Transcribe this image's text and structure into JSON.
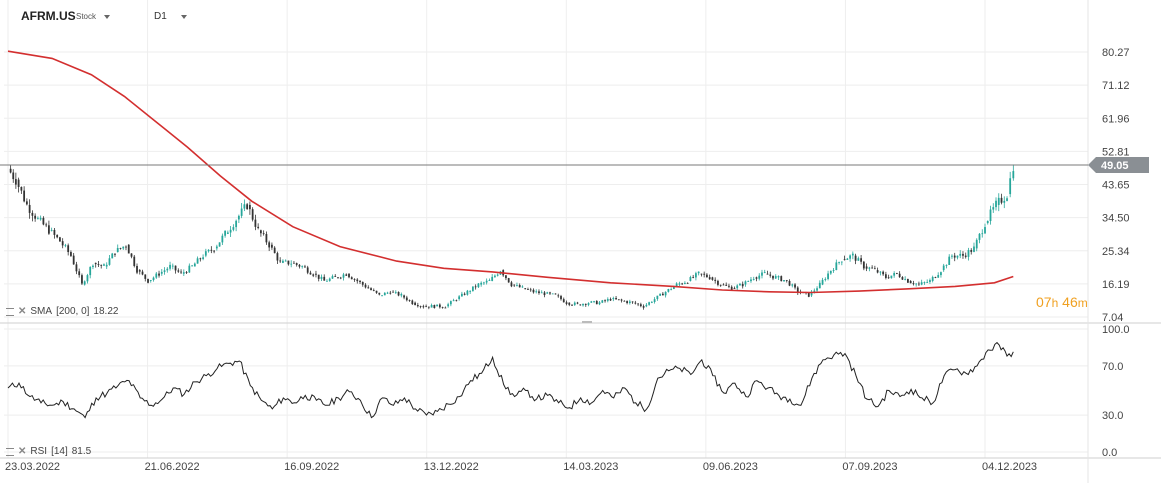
{
  "header": {
    "symbol": "AFRM.US",
    "instrument_type": "Stock",
    "timeframe": "D1"
  },
  "colors": {
    "up": "#26a69a",
    "down": "#333333",
    "sma": "#d32f2f",
    "rsi": "#222222",
    "grid": "#eeeeee",
    "price_tag": "#8a8f94"
  },
  "indicators": {
    "sma": {
      "label": "SMA",
      "params": "[200,  0]",
      "value": "18.22"
    },
    "rsi": {
      "label": "RSI",
      "params": "[14]",
      "value": "81.5"
    }
  },
  "countdown": {
    "hours": "07",
    "h_unit": "h",
    "minutes": "46",
    "m_unit": "m"
  },
  "chart_data": [
    {
      "type": "candlestick",
      "title": "",
      "x_ticks": [
        "23.03.2022",
        "21.06.2022",
        "16.09.2022",
        "13.12.2022",
        "14.03.2023",
        "09.06.2023",
        "07.09.2023",
        "04.12.2023"
      ],
      "y_ticks": [
        "80.27",
        "71.12",
        "61.96",
        "52.81",
        "43.65",
        "34.50",
        "25.34",
        "16.19",
        "7.04"
      ],
      "ylim": [
        7.04,
        80.27
      ],
      "current_price": "49.05",
      "close_series": [
        [
          "2022-03-23",
          48
        ],
        [
          "2022-03-28",
          45
        ],
        [
          "2022-04-04",
          38
        ],
        [
          "2022-04-11",
          34
        ],
        [
          "2022-04-18",
          31
        ],
        [
          "2022-04-25",
          28
        ],
        [
          "2022-05-02",
          24
        ],
        [
          "2022-05-09",
          16
        ],
        [
          "2022-05-16",
          22
        ],
        [
          "2022-05-23",
          21
        ],
        [
          "2022-05-30",
          25
        ],
        [
          "2022-06-06",
          27
        ],
        [
          "2022-06-13",
          20
        ],
        [
          "2022-06-20",
          17
        ],
        [
          "2022-06-27",
          19
        ],
        [
          "2022-07-04",
          21
        ],
        [
          "2022-07-11",
          19
        ],
        [
          "2022-07-18",
          21
        ],
        [
          "2022-07-25",
          24
        ],
        [
          "2022-08-01",
          26
        ],
        [
          "2022-08-08",
          30
        ],
        [
          "2022-08-15",
          34
        ],
        [
          "2022-08-22",
          38
        ],
        [
          "2022-08-29",
          31
        ],
        [
          "2022-09-05",
          27
        ],
        [
          "2022-09-12",
          22
        ],
        [
          "2022-09-19",
          22
        ],
        [
          "2022-09-26",
          21
        ],
        [
          "2022-10-03",
          19
        ],
        [
          "2022-10-10",
          17
        ],
        [
          "2022-10-17",
          18
        ],
        [
          "2022-10-24",
          19
        ],
        [
          "2022-10-31",
          17
        ],
        [
          "2022-11-07",
          15
        ],
        [
          "2022-11-14",
          13
        ],
        [
          "2022-11-21",
          14
        ],
        [
          "2022-11-28",
          13
        ],
        [
          "2022-12-05",
          11
        ],
        [
          "2022-12-12",
          10
        ],
        [
          "2022-12-19",
          10
        ],
        [
          "2022-12-26",
          10
        ],
        [
          "2023-01-02",
          12
        ],
        [
          "2023-01-09",
          14
        ],
        [
          "2023-01-16",
          16
        ],
        [
          "2023-01-23",
          17
        ],
        [
          "2023-01-30",
          20
        ],
        [
          "2023-02-06",
          16
        ],
        [
          "2023-02-13",
          15
        ],
        [
          "2023-02-20",
          14
        ],
        [
          "2023-02-27",
          13.5
        ],
        [
          "2023-03-06",
          13
        ],
        [
          "2023-03-13",
          11
        ],
        [
          "2023-03-20",
          10.5
        ],
        [
          "2023-03-27",
          11
        ],
        [
          "2023-04-03",
          11
        ],
        [
          "2023-04-10",
          12
        ],
        [
          "2023-04-17",
          11.5
        ],
        [
          "2023-04-24",
          11
        ],
        [
          "2023-05-01",
          10
        ],
        [
          "2023-05-08",
          12
        ],
        [
          "2023-05-15",
          14
        ],
        [
          "2023-05-22",
          16
        ],
        [
          "2023-05-29",
          17
        ],
        [
          "2023-06-05",
          19
        ],
        [
          "2023-06-12",
          18
        ],
        [
          "2023-06-19",
          16
        ],
        [
          "2023-06-26",
          15
        ],
        [
          "2023-07-03",
          16
        ],
        [
          "2023-07-10",
          18
        ],
        [
          "2023-07-17",
          19
        ],
        [
          "2023-07-24",
          18
        ],
        [
          "2023-07-31",
          17
        ],
        [
          "2023-08-07",
          14
        ],
        [
          "2023-08-14",
          13
        ],
        [
          "2023-08-21",
          16
        ],
        [
          "2023-08-28",
          20
        ],
        [
          "2023-09-04",
          23
        ],
        [
          "2023-09-11",
          24
        ],
        [
          "2023-09-18",
          21
        ],
        [
          "2023-09-25",
          20
        ],
        [
          "2023-10-02",
          18
        ],
        [
          "2023-10-09",
          19
        ],
        [
          "2023-10-16",
          17
        ],
        [
          "2023-10-23",
          16
        ],
        [
          "2023-10-30",
          17
        ],
        [
          "2023-11-06",
          20
        ],
        [
          "2023-11-13",
          24
        ],
        [
          "2023-11-20",
          24
        ],
        [
          "2023-11-27",
          26
        ],
        [
          "2023-12-04",
          33
        ],
        [
          "2023-12-11",
          38
        ],
        [
          "2023-12-18",
          41
        ],
        [
          "2023-12-22",
          49.05
        ]
      ],
      "sma_200": [
        [
          "2022-03-23",
          80.5
        ],
        [
          "2022-04-20",
          78.5
        ],
        [
          "2022-05-15",
          74
        ],
        [
          "2022-06-05",
          68
        ],
        [
          "2022-06-25",
          61
        ],
        [
          "2022-07-15",
          54
        ],
        [
          "2022-08-05",
          46
        ],
        [
          "2022-08-25",
          39
        ],
        [
          "2022-09-20",
          32
        ],
        [
          "2022-10-20",
          26.5
        ],
        [
          "2022-11-25",
          22.5
        ],
        [
          "2022-12-25",
          20.5
        ],
        [
          "2023-01-25",
          19.5
        ],
        [
          "2023-03-01",
          18
        ],
        [
          "2023-04-10",
          16.5
        ],
        [
          "2023-05-20",
          15.5
        ],
        [
          "2023-06-20",
          14.5
        ],
        [
          "2023-07-20",
          14
        ],
        [
          "2023-08-15",
          13.8
        ],
        [
          "2023-09-15",
          14.2
        ],
        [
          "2023-10-15",
          14.8
        ],
        [
          "2023-11-15",
          15.5
        ],
        [
          "2023-12-10",
          16.5
        ],
        [
          "2023-12-22",
          18.22
        ]
      ]
    },
    {
      "type": "line",
      "title": "",
      "y_ticks": [
        "100.0",
        "70.0",
        "30.0",
        "0.0"
      ],
      "ylim": [
        0,
        100
      ],
      "series": [
        {
          "values": [
            [
              "2022-03-23",
              52
            ],
            [
              "2022-03-30",
              56
            ],
            [
              "2022-04-06",
              45
            ],
            [
              "2022-04-13",
              40
            ],
            [
              "2022-04-20",
              38
            ],
            [
              "2022-04-27",
              41
            ],
            [
              "2022-05-04",
              35
            ],
            [
              "2022-05-11",
              28
            ],
            [
              "2022-05-18",
              44
            ],
            [
              "2022-05-25",
              48
            ],
            [
              "2022-06-01",
              54
            ],
            [
              "2022-06-08",
              58
            ],
            [
              "2022-06-15",
              44
            ],
            [
              "2022-06-22",
              38
            ],
            [
              "2022-06-29",
              43
            ],
            [
              "2022-07-06",
              52
            ],
            [
              "2022-07-13",
              47
            ],
            [
              "2022-07-20",
              57
            ],
            [
              "2022-07-27",
              62
            ],
            [
              "2022-08-03",
              68
            ],
            [
              "2022-08-10",
              72
            ],
            [
              "2022-08-17",
              74
            ],
            [
              "2022-08-24",
              54
            ],
            [
              "2022-08-31",
              42
            ],
            [
              "2022-09-07",
              35
            ],
            [
              "2022-09-14",
              44
            ],
            [
              "2022-09-21",
              40
            ],
            [
              "2022-09-28",
              46
            ],
            [
              "2022-10-05",
              42
            ],
            [
              "2022-10-12",
              38
            ],
            [
              "2022-10-19",
              44
            ],
            [
              "2022-10-26",
              49
            ],
            [
              "2022-11-02",
              42
            ],
            [
              "2022-11-09",
              28
            ],
            [
              "2022-11-16",
              44
            ],
            [
              "2022-11-23",
              38
            ],
            [
              "2022-11-30",
              44
            ],
            [
              "2022-12-07",
              35
            ],
            [
              "2022-12-14",
              30
            ],
            [
              "2022-12-21",
              33
            ],
            [
              "2023-01-04",
              45
            ],
            [
              "2023-01-11",
              58
            ],
            [
              "2023-01-18",
              64
            ],
            [
              "2023-01-25",
              77
            ],
            [
              "2023-02-01",
              55
            ],
            [
              "2023-02-08",
              45
            ],
            [
              "2023-02-15",
              50
            ],
            [
              "2023-02-22",
              43
            ],
            [
              "2023-03-01",
              46
            ],
            [
              "2023-03-08",
              40
            ],
            [
              "2023-03-15",
              36
            ],
            [
              "2023-03-22",
              44
            ],
            [
              "2023-03-29",
              40
            ],
            [
              "2023-04-05",
              50
            ],
            [
              "2023-04-12",
              44
            ],
            [
              "2023-04-19",
              52
            ],
            [
              "2023-04-26",
              40
            ],
            [
              "2023-05-03",
              35
            ],
            [
              "2023-05-10",
              60
            ],
            [
              "2023-05-17",
              66
            ],
            [
              "2023-05-24",
              68
            ],
            [
              "2023-05-31",
              63
            ],
            [
              "2023-06-07",
              75
            ],
            [
              "2023-06-14",
              62
            ],
            [
              "2023-06-21",
              48
            ],
            [
              "2023-06-28",
              56
            ],
            [
              "2023-07-05",
              45
            ],
            [
              "2023-07-12",
              58
            ],
            [
              "2023-07-19",
              52
            ],
            [
              "2023-07-26",
              46
            ],
            [
              "2023-08-02",
              43
            ],
            [
              "2023-08-09",
              38
            ],
            [
              "2023-08-16",
              60
            ],
            [
              "2023-08-23",
              75
            ],
            [
              "2023-08-30",
              79
            ],
            [
              "2023-09-06",
              80
            ],
            [
              "2023-09-13",
              62
            ],
            [
              "2023-09-20",
              43
            ],
            [
              "2023-09-27",
              37
            ],
            [
              "2023-10-04",
              50
            ],
            [
              "2023-10-11",
              45
            ],
            [
              "2023-10-18",
              51
            ],
            [
              "2023-10-25",
              44
            ],
            [
              "2023-11-01",
              40
            ],
            [
              "2023-11-08",
              62
            ],
            [
              "2023-11-15",
              67
            ],
            [
              "2023-11-22",
              64
            ],
            [
              "2023-11-29",
              70
            ],
            [
              "2023-12-06",
              83
            ],
            [
              "2023-12-13",
              87
            ],
            [
              "2023-12-18",
              78
            ],
            [
              "2023-12-22",
              81.5
            ]
          ]
        }
      ]
    }
  ]
}
